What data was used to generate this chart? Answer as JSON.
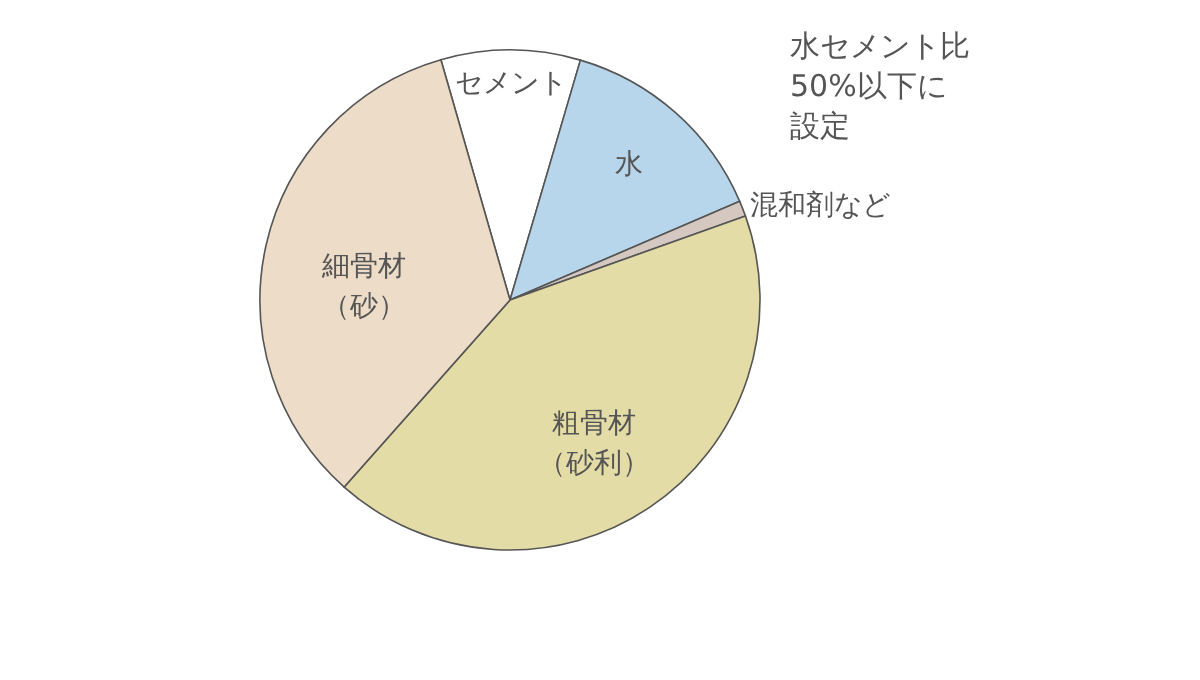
{
  "chart_data": {
    "type": "pie",
    "categories": [
      "セメント",
      "水",
      "混和剤など",
      "粗骨材（砂利）",
      "細骨材（砂）"
    ],
    "values": [
      9,
      14,
      1,
      42,
      34
    ],
    "colors": [
      "#ffffff",
      "#b7d6ec",
      "#d4c8c0",
      "#e4dca6",
      "#ecdcc8"
    ],
    "annotations": [
      "水セメント比50%以下に設定"
    ]
  }
}
